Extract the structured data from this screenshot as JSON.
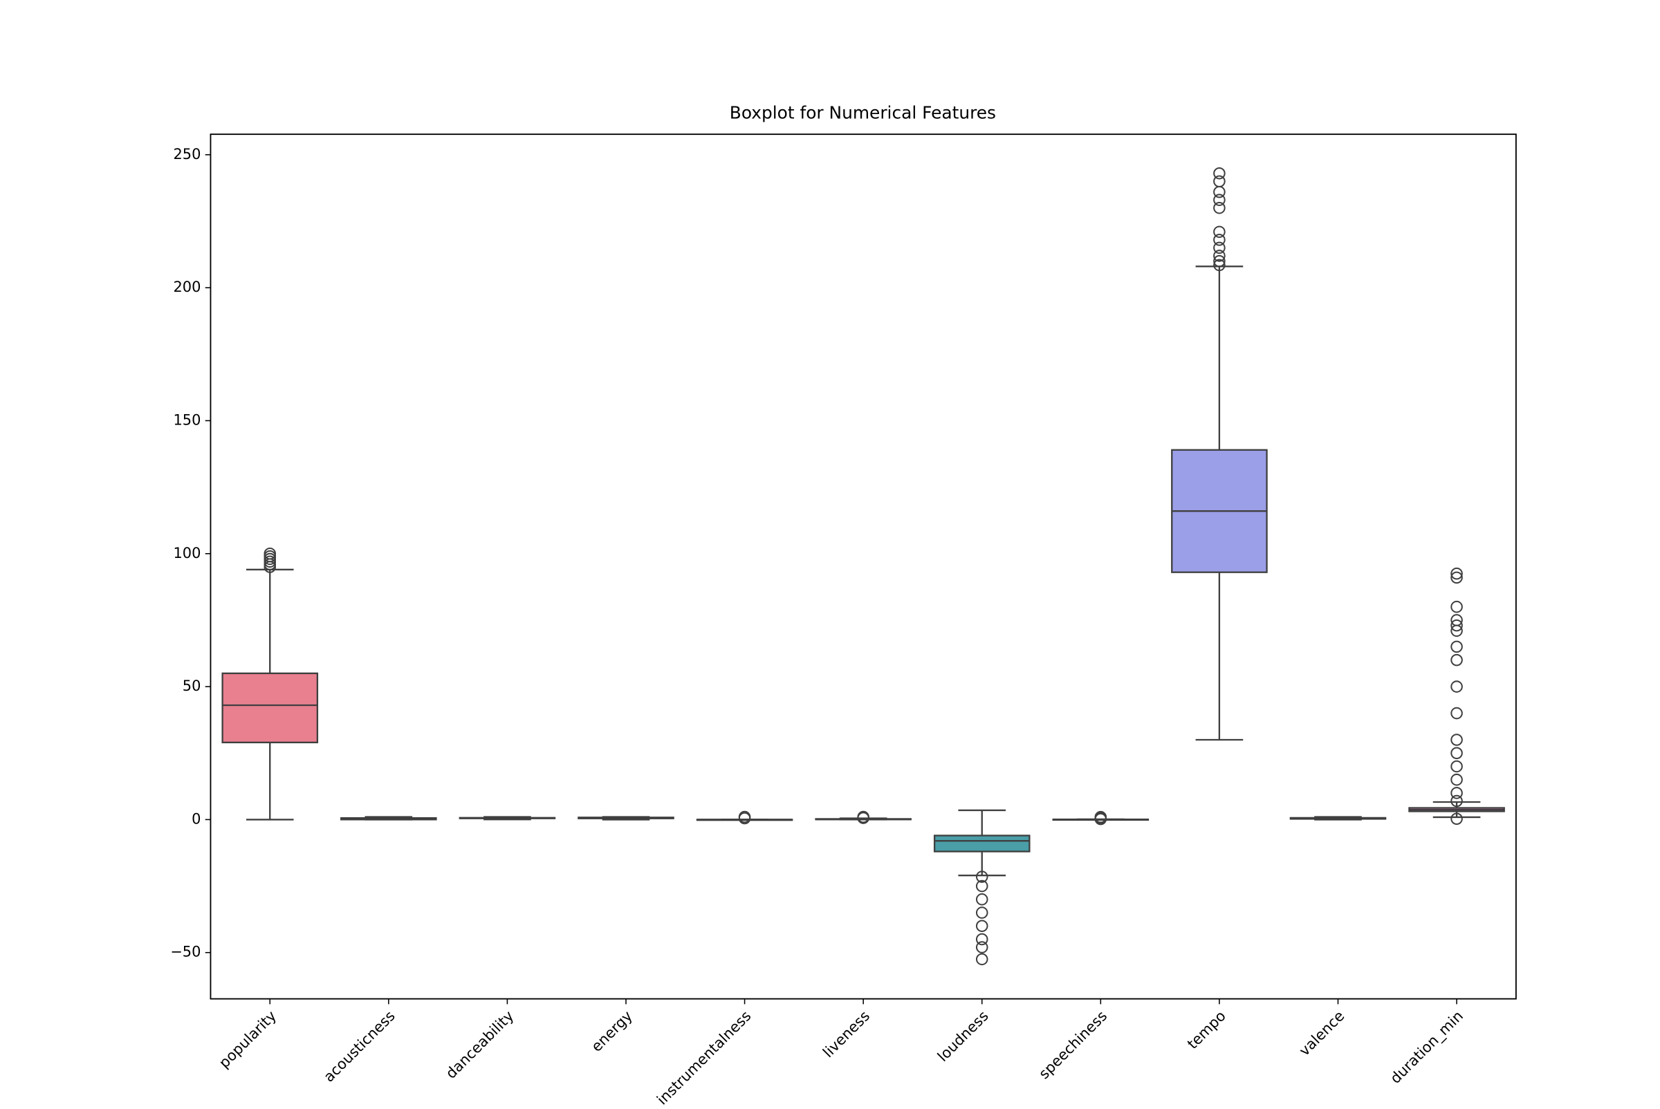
{
  "chart_data": {
    "type": "box",
    "title": "Boxplot for Numerical Features",
    "categories": [
      "popularity",
      "acousticness",
      "danceability",
      "energy",
      "instrumentalness",
      "liveness",
      "loudness",
      "speechiness",
      "tempo",
      "valence",
      "duration_min"
    ],
    "colors": [
      "#e8808f",
      "#d6924f",
      "#b39d4b",
      "#8aab4c",
      "#4fae83",
      "#4fab9f",
      "#4a9ea8",
      "#5aa6c8",
      "#9b9fe8",
      "#c88ad6",
      "#e07fbf"
    ],
    "boxes": [
      {
        "whislo": 0,
        "q1": 29,
        "med": 43,
        "q3": 55,
        "whishi": 94,
        "fliers": [
          95,
          96,
          97,
          98,
          99,
          100
        ]
      },
      {
        "whislo": 0,
        "q1": 0.02,
        "med": 0.17,
        "q3": 0.6,
        "whishi": 1,
        "fliers": []
      },
      {
        "whislo": 0.06,
        "q1": 0.45,
        "med": 0.57,
        "q3": 0.68,
        "whishi": 1,
        "fliers": []
      },
      {
        "whislo": 0,
        "q1": 0.43,
        "med": 0.63,
        "q3": 0.8,
        "whishi": 1,
        "fliers": []
      },
      {
        "whislo": 0,
        "q1": 0,
        "med": 0,
        "q3": 0.005,
        "whishi": 0.01,
        "fliers": [
          0.5,
          1
        ]
      },
      {
        "whislo": 0.01,
        "q1": 0.1,
        "med": 0.13,
        "q3": 0.25,
        "whishi": 0.47,
        "fliers": [
          0.6,
          1
        ]
      },
      {
        "whislo": -21,
        "q1": -12,
        "med": -8,
        "q3": -6,
        "whishi": 3.5,
        "fliers": [
          -21.5,
          -25,
          -30,
          -35,
          -40,
          -45,
          -48,
          -52.5
        ]
      },
      {
        "whislo": 0.02,
        "q1": 0.04,
        "med": 0.05,
        "q3": 0.08,
        "whishi": 0.13,
        "fliers": [
          0.2,
          0.5,
          0.97
        ]
      },
      {
        "whislo": 30,
        "q1": 93,
        "med": 116,
        "q3": 139,
        "whishi": 208,
        "fliers": [
          208.5,
          210,
          212,
          215,
          218,
          221,
          230,
          233,
          236,
          240,
          243
        ]
      },
      {
        "whislo": 0,
        "q1": 0.26,
        "med": 0.45,
        "q3": 0.65,
        "whishi": 1,
        "fliers": []
      },
      {
        "whislo": 0.9,
        "q1": 3.1,
        "med": 3.7,
        "q3": 4.4,
        "whishi": 6.6,
        "fliers": [
          0.3,
          7,
          10,
          15,
          20,
          25,
          30,
          40,
          50,
          60,
          65,
          71,
          73,
          75,
          80,
          91,
          92.5
        ]
      }
    ],
    "ylim": [
      -67.4,
      257.7
    ],
    "yticks": [
      {
        "value": -50,
        "label": "−50"
      },
      0,
      50,
      100,
      150,
      200,
      250
    ]
  }
}
